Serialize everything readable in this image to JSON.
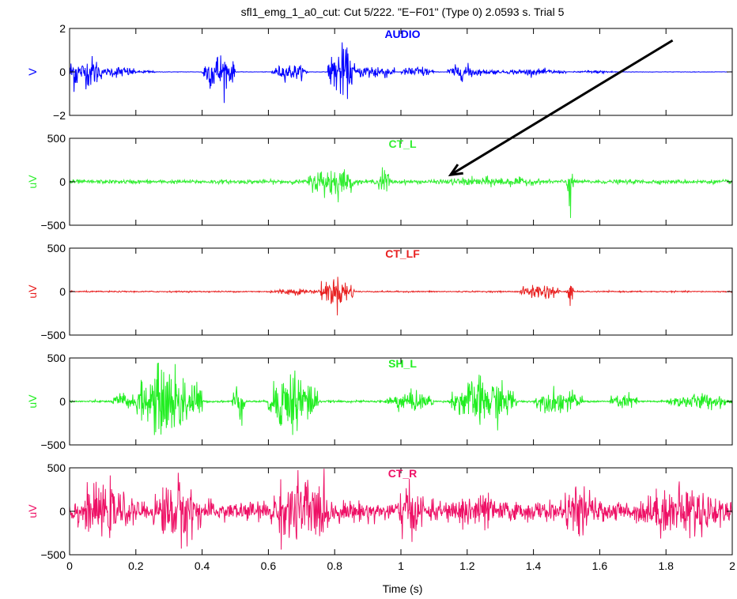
{
  "figure": {
    "title": "sfl1_emg_1_a0_cut: Cut 5/222. \"E−F01\" (Type 0) 2.0593 s. Trial 5",
    "xlabel": "Time (s)"
  },
  "chart_data": {
    "type": "line",
    "x_range": [
      0,
      2
    ],
    "x_ticks": [
      0,
      0.2,
      0.4,
      0.6,
      0.8,
      1,
      1.2,
      1.4,
      1.6,
      1.8,
      2
    ],
    "x_tick_labels": [
      "0",
      "0.2",
      "0.4",
      "0.6",
      "0.8",
      "1",
      "1.2",
      "1.4",
      "1.6",
      "1.8",
      "2"
    ],
    "xlabel": "Time (s)",
    "grid": false,
    "panels": [
      {
        "name": "AUDIO",
        "ylabel": "V",
        "color": "#0000ff",
        "ylim": [
          -2,
          2
        ],
        "yticks": [
          -2,
          0,
          2
        ],
        "ytick_labels": [
          "−2",
          "0",
          "2"
        ],
        "baseline_amp": 0.01,
        "bursts": [
          [
            0,
            0.03,
            1.0
          ],
          [
            0.03,
            0.1,
            0.8
          ],
          [
            0.1,
            0.2,
            0.3
          ],
          [
            0.2,
            0.26,
            0.08
          ],
          [
            0.4,
            0.5,
            1.0
          ],
          [
            0.61,
            0.72,
            0.4
          ],
          [
            0.78,
            0.86,
            1.3
          ],
          [
            0.86,
            0.98,
            0.4
          ],
          [
            1.0,
            1.1,
            0.3
          ],
          [
            1.14,
            1.24,
            0.4
          ],
          [
            1.24,
            1.3,
            0.15
          ],
          [
            1.3,
            1.5,
            0.15
          ],
          [
            1.52,
            1.65,
            0.08
          ]
        ]
      },
      {
        "name": "CT_L",
        "ylabel": "uV",
        "color": "#33ee33",
        "ylim": [
          -500,
          500
        ],
        "yticks": [
          -500,
          0,
          500
        ],
        "ytick_labels": [
          "−500",
          "0",
          "500"
        ],
        "baseline_amp": 25,
        "bursts": [
          [
            0.72,
            0.86,
            200
          ],
          [
            0.93,
            0.97,
            180
          ],
          [
            1.1,
            1.45,
            60
          ],
          [
            1.5,
            1.52,
            450
          ]
        ],
        "annotation": {
          "type": "arrow",
          "from": [
            1.82,
            1.45
          ],
          "to": [
            1.15,
            80
          ]
        }
      },
      {
        "name": "CT_LF",
        "ylabel": "uV",
        "color": "#e82020",
        "ylim": [
          -500,
          500
        ],
        "yticks": [
          -500,
          0,
          500
        ],
        "ytick_labels": [
          "−500",
          "0",
          "500"
        ],
        "baseline_amp": 8,
        "bursts": [
          [
            0.6,
            0.75,
            40
          ],
          [
            0.75,
            0.86,
            180
          ],
          [
            1.36,
            1.48,
            100
          ],
          [
            1.5,
            1.52,
            200
          ]
        ]
      },
      {
        "name": "SH_L",
        "ylabel": "uV",
        "color": "#22ee22",
        "ylim": [
          -500,
          500
        ],
        "yticks": [
          -500,
          0,
          500
        ],
        "ytick_labels": [
          "−500",
          "0",
          "500"
        ],
        "baseline_amp": 12,
        "bursts": [
          [
            0.13,
            0.2,
            120
          ],
          [
            0.2,
            0.4,
            450
          ],
          [
            0.49,
            0.53,
            250
          ],
          [
            0.6,
            0.75,
            430
          ],
          [
            0.95,
            1.1,
            130
          ],
          [
            1.15,
            1.35,
            300
          ],
          [
            1.4,
            1.55,
            150
          ],
          [
            1.63,
            1.72,
            100
          ],
          [
            1.8,
            2.0,
            100
          ]
        ]
      },
      {
        "name": "CT_R",
        "ylabel": "uV",
        "color": "#ee1166",
        "ylim": [
          -500,
          500
        ],
        "yticks": [
          -500,
          0,
          500
        ],
        "ytick_labels": [
          "−500",
          "0",
          "500"
        ],
        "baseline_amp": 120,
        "bursts": [
          [
            0,
            0.2,
            300
          ],
          [
            0.25,
            0.4,
            420
          ],
          [
            0.6,
            0.8,
            450
          ],
          [
            0.98,
            1.08,
            320
          ],
          [
            1.15,
            1.3,
            260
          ],
          [
            1.48,
            1.6,
            300
          ],
          [
            1.7,
            2.0,
            320
          ]
        ]
      }
    ]
  }
}
